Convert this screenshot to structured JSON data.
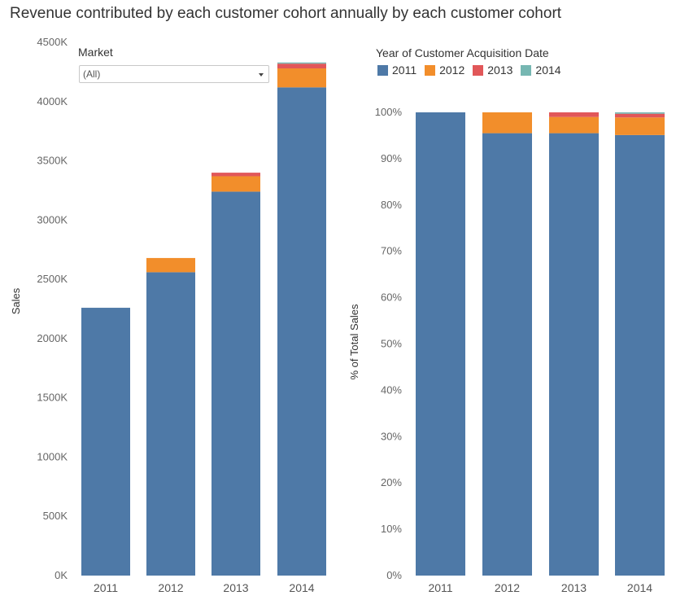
{
  "title": "Revenue contributed by each customer cohort annually by each customer cohort",
  "filter": {
    "label": "Market",
    "value": "(All)"
  },
  "legend": {
    "title": "Year of Customer Acquisition Date",
    "items": [
      {
        "label": "2011",
        "color": "#4e79a7"
      },
      {
        "label": "2012",
        "color": "#f28e2b"
      },
      {
        "label": "2013",
        "color": "#e15759"
      },
      {
        "label": "2014",
        "color": "#76b7b2"
      }
    ]
  },
  "chart_data": [
    {
      "type": "bar",
      "stacked": true,
      "ylabel": "Sales",
      "categories": [
        "2011",
        "2012",
        "2013",
        "2014"
      ],
      "ylim": [
        0,
        4500
      ],
      "yticks": [
        "0K",
        "500K",
        "1000K",
        "1500K",
        "2000K",
        "2500K",
        "3000K",
        "3500K",
        "4000K",
        "4500K"
      ],
      "series": [
        {
          "name": "2011",
          "values": [
            2260,
            2560,
            3240,
            4120
          ]
        },
        {
          "name": "2012",
          "values": [
            0,
            120,
            130,
            160
          ]
        },
        {
          "name": "2013",
          "values": [
            0,
            0,
            30,
            40
          ]
        },
        {
          "name": "2014",
          "values": [
            0,
            0,
            0,
            10
          ]
        }
      ]
    },
    {
      "type": "bar",
      "stacked": true,
      "ylabel": "% of Total Sales",
      "categories": [
        "2011",
        "2012",
        "2013",
        "2014"
      ],
      "ylim": [
        0,
        100
      ],
      "yticks": [
        "0%",
        "10%",
        "20%",
        "30%",
        "40%",
        "50%",
        "60%",
        "70%",
        "80%",
        "90%",
        "100%"
      ],
      "series": [
        {
          "name": "2011",
          "values": [
            100,
            95.5,
            95.5,
            95.1
          ]
        },
        {
          "name": "2012",
          "values": [
            0,
            4.5,
            3.5,
            3.8
          ]
        },
        {
          "name": "2013",
          "values": [
            0,
            0,
            1.0,
            0.8
          ]
        },
        {
          "name": "2014",
          "values": [
            0,
            0,
            0,
            0.3
          ]
        }
      ]
    }
  ]
}
